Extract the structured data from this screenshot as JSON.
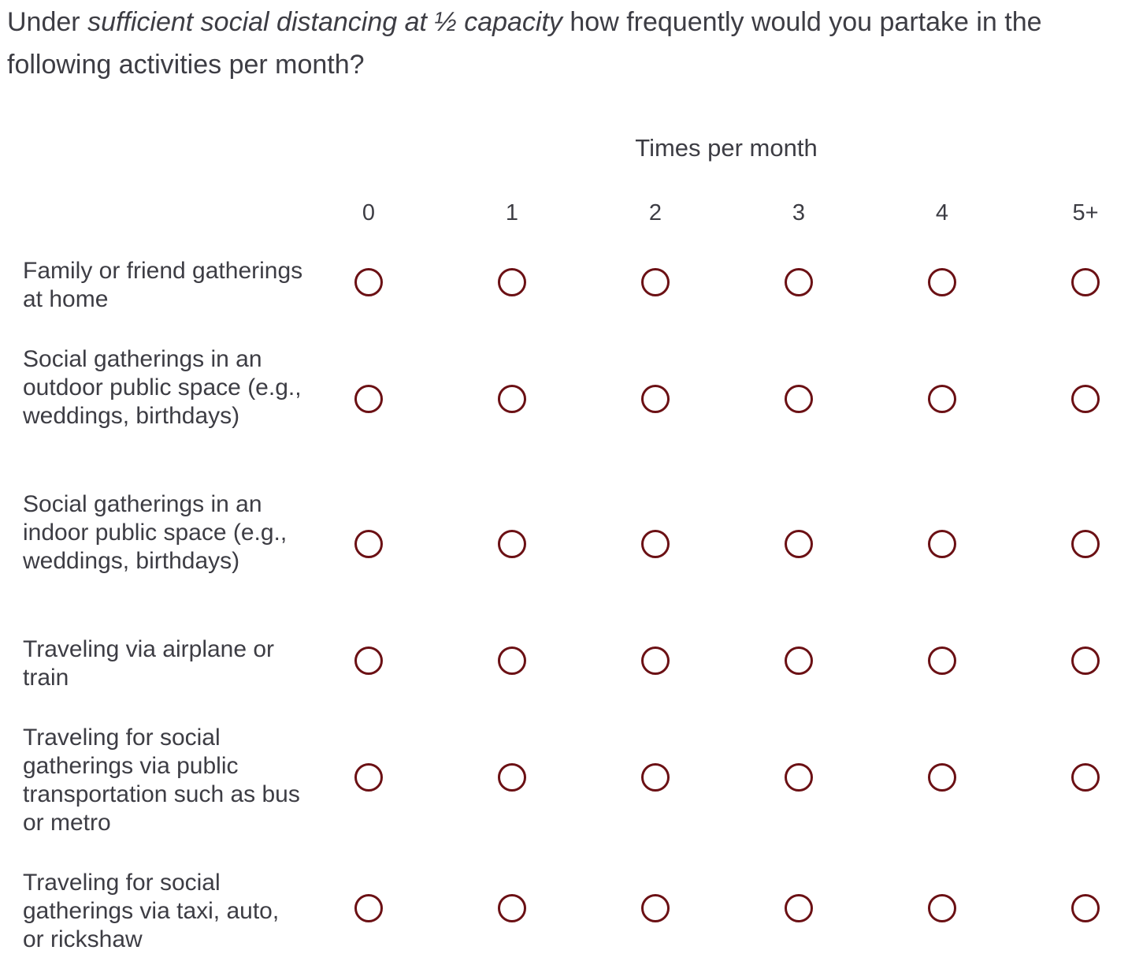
{
  "question": {
    "prefix": "Under ",
    "emphasis": "sufficient social distancing at ½ capacity",
    "suffix": " how frequently would you partake in the following activities per month?"
  },
  "scale_header": "Times per month",
  "columns": [
    "0",
    "1",
    "2",
    "3",
    "4",
    "5+"
  ],
  "rows": [
    {
      "label": "Family or friend gatherings at home"
    },
    {
      "label": "Social gatherings in an outdoor public space (e.g., weddings, birthdays)"
    },
    {
      "label": "Social gatherings in an indoor public space (e.g., weddings, birthdays)"
    },
    {
      "label": "Traveling via airplane or train"
    },
    {
      "label": "Traveling for social gatherings via public transportation such as bus or metro"
    },
    {
      "label": "Traveling for social gatherings via taxi, auto, or rickshaw"
    }
  ],
  "colors": {
    "radio_border": "#6b1014",
    "text": "#3d3d44"
  }
}
